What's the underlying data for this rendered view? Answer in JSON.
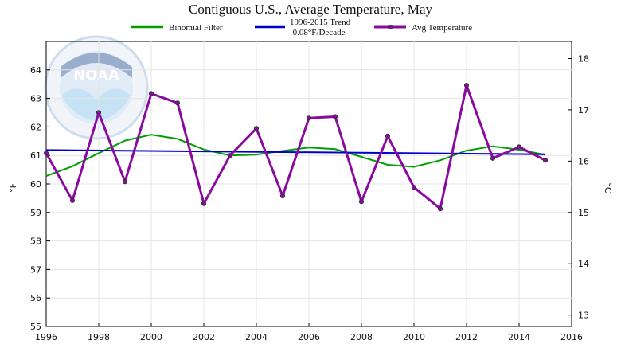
{
  "colors": {
    "binomial": "#00a000",
    "trend": "#0000cc",
    "avg": "#8a0aa0",
    "marker_edge": "#333333",
    "grid": "#e4e4e4",
    "logo": "#b9d0ea"
  },
  "logo": {
    "icon": "noaa-logo-watermark",
    "text": "NOAA"
  },
  "chart_data": {
    "type": "line",
    "title": "Contiguous U.S., Average Temperature, May",
    "xlabel": "",
    "ylabel": "°F",
    "y2label": "°C",
    "xlim": [
      1996,
      2016
    ],
    "ylim": [
      55,
      65
    ],
    "y2lim": [
      12.78,
      18.33
    ],
    "xticks": [
      1996,
      1998,
      2000,
      2002,
      2004,
      2006,
      2008,
      2010,
      2012,
      2014,
      2016
    ],
    "yticks": [
      55,
      56,
      57,
      58,
      59,
      60,
      61,
      62,
      63,
      64
    ],
    "y2ticks": [
      13,
      14,
      15,
      16,
      17,
      18
    ],
    "grid": true,
    "legend_position": "top",
    "legend": {
      "binomial": "Binomial Filter",
      "trend_line1": "1996-2015 Trend",
      "trend_line2": "-0.08°F/Decade",
      "avg": "Avg Temperature"
    },
    "x": [
      1996,
      1997,
      1998,
      1999,
      2000,
      2001,
      2002,
      2003,
      2004,
      2005,
      2006,
      2007,
      2008,
      2009,
      2010,
      2011,
      2012,
      2013,
      2014,
      2015
    ],
    "series": [
      {
        "name": "Binomial Filter",
        "values": [
          60.28,
          60.62,
          61.08,
          61.52,
          61.73,
          61.58,
          61.21,
          61.0,
          61.03,
          61.16,
          61.28,
          61.22,
          60.95,
          60.67,
          60.6,
          60.83,
          61.17,
          61.32,
          61.2,
          61.02
        ]
      },
      {
        "name": "1996-2015 Trend",
        "x": [
          1996,
          2015
        ],
        "values": [
          61.19,
          61.04
        ]
      },
      {
        "name": "Avg Temperature",
        "values": [
          61.08,
          59.42,
          62.5,
          60.08,
          63.17,
          62.84,
          59.31,
          61.0,
          61.95,
          59.58,
          62.31,
          62.36,
          59.38,
          61.68,
          59.88,
          59.13,
          63.46,
          60.9,
          61.3,
          60.83
        ]
      }
    ]
  }
}
